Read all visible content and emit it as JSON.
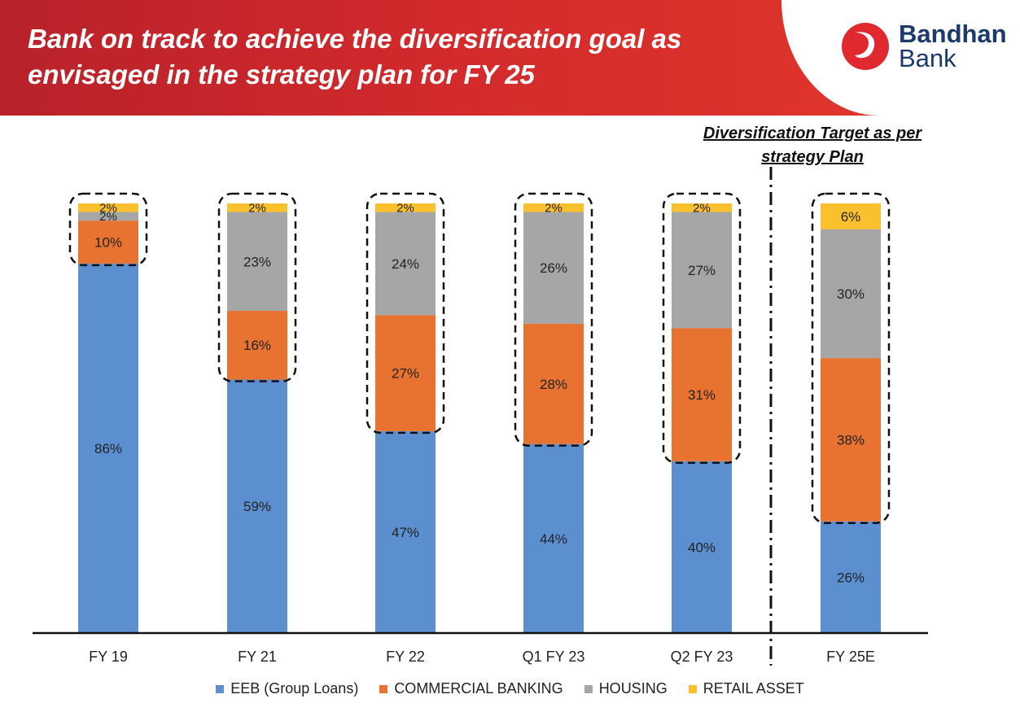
{
  "header": {
    "title": "Bank on track to achieve the diversification goal as envisaged in the strategy plan for FY 25",
    "logo_line1": "Bandhan",
    "logo_line2": "Bank"
  },
  "target_title": "Diversification Target as per strategy Plan",
  "colors": {
    "banner": "#d32a2c",
    "logo_red": "#e0282f",
    "logo_blue": "#1b3a6b"
  },
  "chart_data": {
    "type": "bar",
    "stacked": true,
    "categories": [
      "FY 19",
      "FY 21",
      "FY 22",
      "Q1 FY 23",
      "Q2 FY 23",
      "FY 25E"
    ],
    "series": [
      {
        "name": "EEB (Group Loans)",
        "color": "#5b8fd0",
        "values": [
          86,
          59,
          47,
          44,
          40,
          26
        ],
        "labels": [
          "86%",
          "59%",
          "47%",
          "44%",
          "40%",
          "26%"
        ]
      },
      {
        "name": "COMMERCIAL BANKING",
        "color": "#e8722f",
        "values": [
          10,
          16,
          27,
          28,
          31,
          38
        ],
        "labels": [
          "10%",
          "16%",
          "27%",
          "28%",
          "31%",
          "38%"
        ]
      },
      {
        "name": "HOUSING",
        "color": "#a6a6a6",
        "values": [
          2,
          23,
          24,
          26,
          27,
          30
        ],
        "labels": [
          "2%",
          "23%",
          "24%",
          "26%",
          "27%",
          "30%"
        ]
      },
      {
        "name": "RETAIL ASSET",
        "color": "#fbc02d",
        "values": [
          2,
          2,
          2,
          2,
          2,
          6
        ],
        "labels": [
          "2%",
          "2%",
          "2%",
          "2%",
          "2%",
          "6%"
        ]
      }
    ],
    "ylim": [
      0,
      100
    ],
    "grid": false,
    "legend_position": "bottom",
    "highlighted": "non-EEB segments of each bar outlined with dashed rounded boxes",
    "separator": "dash-dot vertical line before FY 25E"
  }
}
